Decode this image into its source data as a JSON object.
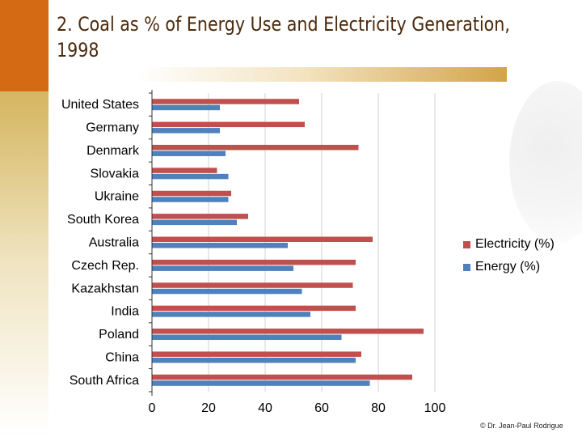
{
  "title": "2. Coal as % of Energy Use and Electricity Generation, 1998",
  "credit": "© Dr. Jean-Paul Rodrigue",
  "colors": {
    "electricity": "#c0504d",
    "energy": "#4f81bd",
    "accent": "#d46a14"
  },
  "chart_data": {
    "type": "bar",
    "orientation": "horizontal",
    "title": "2. Coal as % of Energy Use and Electricity Generation, 1998",
    "xlabel": "",
    "ylabel": "",
    "xlim": [
      0,
      100
    ],
    "x_ticks": [
      "0",
      "20",
      "40",
      "60",
      "80",
      "100"
    ],
    "categories": [
      "United States",
      "Germany",
      "Denmark",
      "Slovakia",
      "Ukraine",
      "South Korea",
      "Australia",
      "Czech Rep.",
      "Kazakhstan",
      "India",
      "Poland",
      "China",
      "South Africa"
    ],
    "series": [
      {
        "name": "Electricity (%)",
        "values": [
          52,
          54,
          73,
          23,
          28,
          34,
          78,
          72,
          71,
          72,
          96,
          74,
          92
        ]
      },
      {
        "name": "Energy (%)",
        "values": [
          24,
          24,
          26,
          27,
          27,
          30,
          48,
          50,
          53,
          56,
          67,
          72,
          77
        ]
      }
    ],
    "legend_position": "right"
  }
}
